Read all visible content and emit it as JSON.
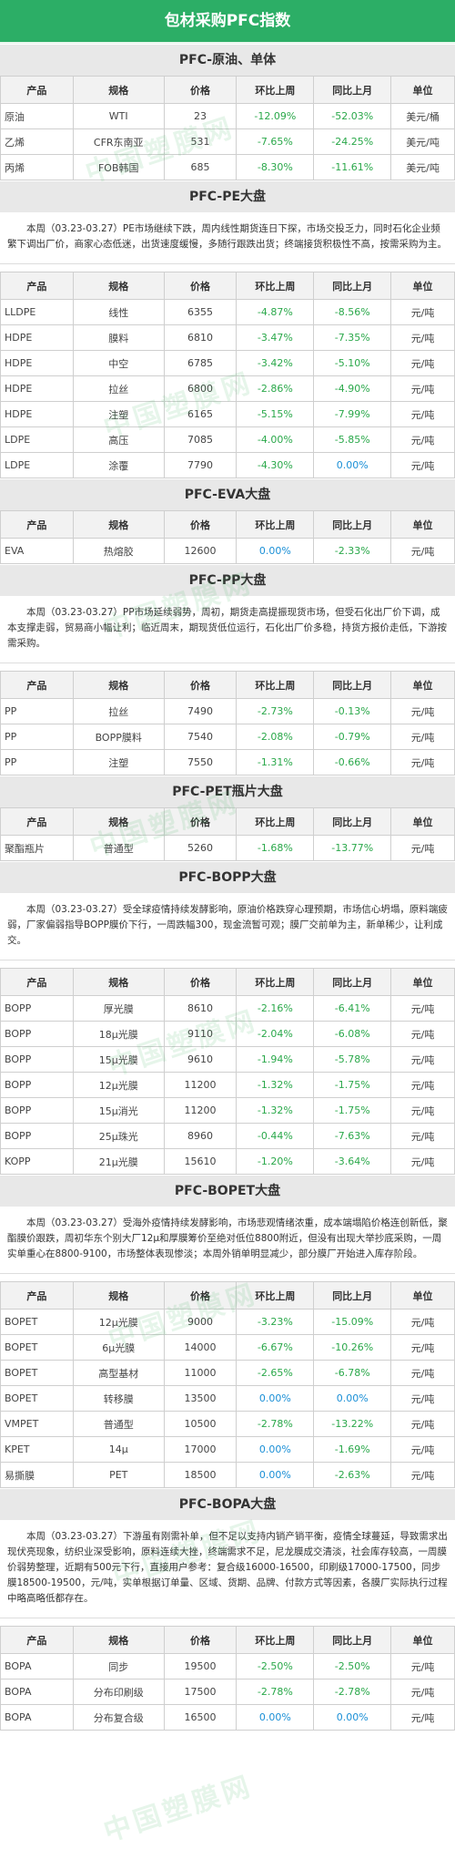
{
  "title": "包材采购PFC指数",
  "header": [
    "产品",
    "规格",
    "价格",
    "环比上周",
    "同比上月",
    "单位"
  ],
  "watermark": "中国塑膜网",
  "sections": [
    {
      "title": "PFC-原油、单体",
      "rows": [
        [
          "原油",
          "WTI",
          "23",
          "-12.09%",
          "-52.03%",
          "美元/桶"
        ],
        [
          "乙烯",
          "CFR东南亚",
          "531",
          "-7.65%",
          "-24.25%",
          "美元/吨"
        ],
        [
          "丙烯",
          "FOB韩国",
          "685",
          "-8.30%",
          "-11.61%",
          "美元/吨"
        ]
      ]
    },
    {
      "title": "PFC-PE大盘",
      "text": "本周（03.23-03.27）PE市场继续下跌，周内线性期货连日下探，市场交投乏力，同时石化企业频繁下调出厂价，商家心态低迷，出货速度缓慢，多随行跟跌出货；终端接货积极性不高，按需采购为主。",
      "rows": [
        [
          "LLDPE",
          "线性",
          "6355",
          "-4.87%",
          "-8.56%",
          "元/吨"
        ],
        [
          "HDPE",
          "膜料",
          "6810",
          "-3.47%",
          "-7.35%",
          "元/吨"
        ],
        [
          "HDPE",
          "中空",
          "6785",
          "-3.42%",
          "-5.10%",
          "元/吨"
        ],
        [
          "HDPE",
          "拉丝",
          "6800",
          "-2.86%",
          "-4.90%",
          "元/吨"
        ],
        [
          "HDPE",
          "注塑",
          "6165",
          "-5.15%",
          "-7.99%",
          "元/吨"
        ],
        [
          "LDPE",
          "高压",
          "7085",
          "-4.00%",
          "-5.85%",
          "元/吨"
        ],
        [
          "LDPE",
          "涂覆",
          "7790",
          "-4.30%",
          "0.00%",
          "元/吨"
        ]
      ]
    },
    {
      "title": "PFC-EVA大盘",
      "rows": [
        [
          "EVA",
          "热熔胶",
          "12600",
          "0.00%",
          "-2.33%",
          "元/吨"
        ]
      ]
    },
    {
      "title": "PFC-PP大盘",
      "text": "本周（03.23-03.27）PP市场延续弱势，周初，期货走高提振现货市场，但受石化出厂价下调，成本支撑走弱，贸易商小幅让利；临近周末，期现货低位运行，石化出厂价多稳，持货方报价走低，下游按需采购。",
      "rows": [
        [
          "PP",
          "拉丝",
          "7490",
          "-2.73%",
          "-0.13%",
          "元/吨"
        ],
        [
          "PP",
          "BOPP膜料",
          "7540",
          "-2.08%",
          "-0.79%",
          "元/吨"
        ],
        [
          "PP",
          "注塑",
          "7550",
          "-1.31%",
          "-0.66%",
          "元/吨"
        ]
      ]
    },
    {
      "title": "PFC-PET瓶片大盘",
      "rows": [
        [
          "聚酯瓶片",
          "普通型",
          "5260",
          "-1.68%",
          "-13.77%",
          "元/吨"
        ]
      ]
    },
    {
      "title": "PFC-BOPP大盘",
      "text": "本周（03.23-03.27）受全球疫情持续发酵影响，原油价格跌穿心理预期，市场信心坍塌，原料端疲弱，厂家偏弱指导BOPP膜价下行，一周跌幅300，现金流暂可观；膜厂交前单为主，新单稀少，让利成交。",
      "rows": [
        [
          "BOPP",
          "厚光膜",
          "8610",
          "-2.16%",
          "-6.41%",
          "元/吨"
        ],
        [
          "BOPP",
          "18μ光膜",
          "9110",
          "-2.04%",
          "-6.08%",
          "元/吨"
        ],
        [
          "BOPP",
          "15μ光膜",
          "9610",
          "-1.94%",
          "-5.78%",
          "元/吨"
        ],
        [
          "BOPP",
          "12μ光膜",
          "11200",
          "-1.32%",
          "-1.75%",
          "元/吨"
        ],
        [
          "BOPP",
          "15μ消光",
          "11200",
          "-1.32%",
          "-1.75%",
          "元/吨"
        ],
        [
          "BOPP",
          "25μ珠光",
          "8960",
          "-0.44%",
          "-7.63%",
          "元/吨"
        ],
        [
          "KOPP",
          "21μ光膜",
          "15610",
          "-1.20%",
          "-3.64%",
          "元/吨"
        ]
      ]
    },
    {
      "title": "PFC-BOPET大盘",
      "text": "本周（03.23-03.27）受海外疫情持续发酵影响，市场悲观情绪浓重，成本端塌陷价格连创新低，聚酯膜价跟跌，周初华东个别大厂12μ和厚膜筹价至绝对低位8800附近，但没有出现大举抄底采购，一周实单重心在8800-9100，市场整体表现惨淡；本周外销单明显减少，部分膜厂开始进入库存阶段。",
      "rows": [
        [
          "BOPET",
          "12μ光膜",
          "9000",
          "-3.23%",
          "-15.09%",
          "元/吨"
        ],
        [
          "BOPET",
          "6μ光膜",
          "14000",
          "-6.67%",
          "-10.26%",
          "元/吨"
        ],
        [
          "BOPET",
          "高型基材",
          "11000",
          "-2.65%",
          "-6.78%",
          "元/吨"
        ],
        [
          "BOPET",
          "转移膜",
          "13500",
          "0.00%",
          "0.00%",
          "元/吨"
        ],
        [
          "VMPET",
          "普通型",
          "10500",
          "-2.78%",
          "-13.22%",
          "元/吨"
        ],
        [
          "KPET",
          "14μ",
          "17000",
          "0.00%",
          "-1.69%",
          "元/吨"
        ],
        [
          "易撕膜",
          "PET",
          "18500",
          "0.00%",
          "-2.63%",
          "元/吨"
        ]
      ]
    },
    {
      "title": "PFC-BOPA大盘",
      "text": "本周（03.23-03.27）下游虽有刚需补单，但不足以支持内销产销平衡，疫情全球蔓延，导致需求出现伏亮现象，纺织业深受影响，原料连续大挫，终端需求不足，尼龙膜成交清淡，社会库存较高，一周膜价弱势整理，近期有500元下行，直接用户参考：复合级16000-16500，印刷级17000-17500，同步膜18500-19500，元/吨，实单根据订单量、区域、货期、品牌、付款方式等因素，各膜厂实际执行过程中略高略低都存在。",
      "rows": [
        [
          "BOPA",
          "同步",
          "19500",
          "-2.50%",
          "-2.50%",
          "元/吨"
        ],
        [
          "BOPA",
          "分布印刷级",
          "17500",
          "-2.78%",
          "-2.78%",
          "元/吨"
        ],
        [
          "BOPA",
          "分布复合级",
          "16500",
          "0.00%",
          "0.00%",
          "元/吨"
        ]
      ]
    }
  ]
}
